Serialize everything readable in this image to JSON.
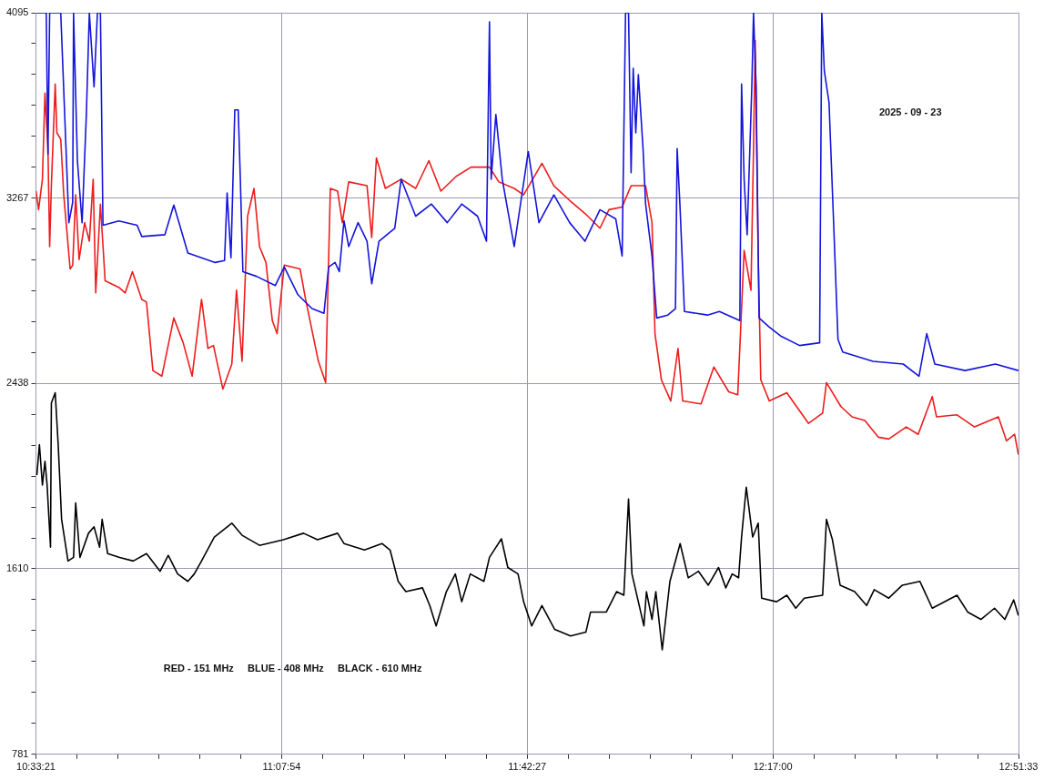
{
  "chart_data": {
    "type": "line",
    "annotations": [
      "2025 - 09 - 23",
      "RED - 151 MHz     BLUE - 408 MHz     BLACK - 610 MHz"
    ],
    "xlim": [
      10.5558,
      12.8592
    ],
    "xticks": [
      {
        "value": 10.5558,
        "label": "10:33:21"
      },
      {
        "value": 10.6518,
        "label": null
      },
      {
        "value": 10.7478,
        "label": null
      },
      {
        "value": 10.8437,
        "label": null
      },
      {
        "value": 10.9397,
        "label": null
      },
      {
        "value": 11.0357,
        "label": null
      },
      {
        "value": 11.1317,
        "label": "11:07:54"
      },
      {
        "value": 11.2276,
        "label": null
      },
      {
        "value": 11.3236,
        "label": null
      },
      {
        "value": 11.4196,
        "label": null
      },
      {
        "value": 11.5156,
        "label": null
      },
      {
        "value": 11.6115,
        "label": null
      },
      {
        "value": 11.7075,
        "label": "11:42:27"
      },
      {
        "value": 11.8035,
        "label": null
      },
      {
        "value": 11.8995,
        "label": null
      },
      {
        "value": 11.9954,
        "label": null
      },
      {
        "value": 12.0914,
        "label": null
      },
      {
        "value": 12.1874,
        "label": null
      },
      {
        "value": 12.2833,
        "label": "12:17:00"
      },
      {
        "value": 12.3793,
        "label": null
      },
      {
        "value": 12.4753,
        "label": null
      },
      {
        "value": 12.5712,
        "label": null
      },
      {
        "value": 12.6672,
        "label": null
      },
      {
        "value": 12.7632,
        "label": null
      },
      {
        "value": 12.8592,
        "label": "12:51:33"
      }
    ],
    "ylim": [
      781,
      4095
    ],
    "yticks": [
      781,
      {
        "value": 919,
        "label": null
      },
      {
        "value": 1057,
        "label": null
      },
      {
        "value": 1196,
        "label": null
      },
      {
        "value": 1334,
        "label": null
      },
      {
        "value": 1472,
        "label": null
      },
      1610,
      {
        "value": 1748,
        "label": null
      },
      {
        "value": 1886,
        "label": null
      },
      {
        "value": 2024,
        "label": null
      },
      {
        "value": 2162,
        "label": null
      },
      {
        "value": 2300,
        "label": null
      },
      2438,
      {
        "value": 2576,
        "label": null
      },
      {
        "value": 2714,
        "label": null
      },
      {
        "value": 2852,
        "label": null
      },
      {
        "value": 2991,
        "label": null
      },
      {
        "value": 3129,
        "label": null
      },
      3267,
      {
        "value": 3405,
        "label": null
      },
      {
        "value": 3543,
        "label": null
      },
      {
        "value": 3681,
        "label": null
      },
      {
        "value": 3819,
        "label": null
      },
      {
        "value": 3957,
        "label": null
      },
      4095
    ],
    "grid": true,
    "marker": "none",
    "line_style": "solid",
    "series": [
      {
        "color": "#ee1c1c",
        "x": [
          10.556,
          10.562,
          10.571,
          10.577,
          10.584,
          10.588,
          10.592,
          10.601,
          10.605,
          10.614,
          10.621,
          10.636,
          10.642,
          10.649,
          10.657,
          10.67,
          10.681,
          10.69,
          10.696,
          10.707,
          10.718,
          10.75,
          10.765,
          10.782,
          10.804,
          10.815,
          10.83,
          10.851,
          10.879,
          10.901,
          10.922,
          10.944,
          10.959,
          10.972,
          10.994,
          11.015,
          11.026,
          11.039,
          11.052,
          11.067,
          11.08,
          11.095,
          11.11,
          11.121,
          11.138,
          11.175,
          11.188,
          11.218,
          11.235,
          11.246,
          11.263,
          11.274,
          11.289,
          11.332,
          11.343,
          11.354,
          11.375,
          11.412,
          11.446,
          11.477,
          11.505,
          11.541,
          11.576,
          11.619,
          11.641,
          11.677,
          11.699,
          11.742,
          11.77,
          11.807,
          11.843,
          11.878,
          11.899,
          11.93,
          11.951,
          11.985,
          12.0,
          12.007,
          12.022,
          12.044,
          12.061,
          12.072,
          12.115,
          12.145,
          12.18,
          12.201,
          12.216,
          12.232,
          12.238,
          12.242,
          12.249,
          12.255,
          12.275,
          12.316,
          12.367,
          12.4,
          12.409,
          12.443,
          12.469,
          12.499,
          12.531,
          12.555,
          12.596,
          12.624,
          12.657,
          12.667,
          12.715,
          12.756,
          12.812,
          12.831,
          12.85,
          12.859
        ],
        "values": [
          3298,
          3215,
          3351,
          3736,
          3488,
          3050,
          3322,
          3777,
          3558,
          3529,
          3281,
          2950,
          2967,
          3281,
          2992,
          3157,
          3074,
          3351,
          2843,
          3240,
          2897,
          2868,
          2843,
          2938,
          2814,
          2802,
          2496,
          2471,
          2731,
          2620,
          2471,
          2814,
          2595,
          2608,
          2413,
          2525,
          2855,
          2537,
          3186,
          3310,
          3050,
          2979,
          2719,
          2661,
          2967,
          2950,
          2814,
          2537,
          2442,
          3310,
          3298,
          3157,
          3339,
          3322,
          3091,
          3446,
          3310,
          3351,
          3310,
          3434,
          3298,
          3364,
          3405,
          3405,
          3339,
          3310,
          3281,
          3422,
          3322,
          3256,
          3198,
          3132,
          3215,
          3227,
          3322,
          3322,
          3157,
          2661,
          2455,
          2360,
          2595,
          2360,
          2347,
          2512,
          2401,
          2388,
          3033,
          2855,
          3488,
          3971,
          3008,
          2455,
          2360,
          2397,
          2260,
          2306,
          2442,
          2335,
          2289,
          2273,
          2198,
          2190,
          2244,
          2211,
          2380,
          2289,
          2298,
          2244,
          2289,
          2182,
          2211,
          2120
        ]
      },
      {
        "color": "#1414dc",
        "x": [
          10.556,
          10.58,
          10.584,
          10.588,
          10.614,
          10.633,
          10.642,
          10.644,
          10.653,
          10.664,
          10.674,
          10.681,
          10.692,
          10.7,
          10.707,
          10.713,
          10.75,
          10.793,
          10.804,
          10.858,
          10.879,
          10.89,
          10.912,
          10.944,
          10.976,
          10.998,
          11.004,
          11.013,
          11.022,
          11.03,
          11.035,
          11.041,
          11.073,
          11.117,
          11.138,
          11.17,
          11.203,
          11.231,
          11.242,
          11.257,
          11.267,
          11.278,
          11.289,
          11.311,
          11.332,
          11.343,
          11.36,
          11.397,
          11.412,
          11.446,
          11.483,
          11.52,
          11.554,
          11.591,
          11.612,
          11.619,
          11.623,
          11.634,
          11.649,
          11.677,
          11.71,
          11.735,
          11.77,
          11.807,
          11.843,
          11.878,
          11.915,
          11.93,
          11.938,
          11.945,
          11.951,
          11.956,
          11.962,
          11.968,
          11.979,
          11.985,
          12.0,
          12.011,
          12.037,
          12.055,
          12.059,
          12.066,
          12.076,
          12.13,
          12.158,
          12.206,
          12.21,
          12.216,
          12.223,
          12.234,
          12.238,
          12.244,
          12.251,
          12.275,
          12.303,
          12.346,
          12.393,
          12.398,
          12.404,
          12.415,
          12.426,
          12.436,
          12.447,
          12.518,
          12.589,
          12.626,
          12.644,
          12.663,
          12.734,
          12.805,
          12.859
        ],
        "values": [
          4095,
          4095,
          3463,
          4095,
          4095,
          3157,
          3248,
          4095,
          3434,
          3157,
          3640,
          4095,
          3764,
          4095,
          4095,
          3145,
          3165,
          3145,
          3095,
          3103,
          3236,
          3165,
          3021,
          3000,
          2979,
          2988,
          3289,
          3000,
          3661,
          3661,
          3351,
          2938,
          2917,
          2876,
          2959,
          2835,
          2773,
          2752,
          2959,
          2979,
          2938,
          3165,
          3050,
          3157,
          3074,
          2884,
          3074,
          3132,
          3351,
          3186,
          3240,
          3157,
          3240,
          3186,
          3074,
          4054,
          3351,
          3640,
          3351,
          3050,
          3475,
          3157,
          3281,
          3157,
          3074,
          3215,
          3174,
          3008,
          4095,
          4095,
          3380,
          3847,
          3558,
          3818,
          3488,
          3240,
          3008,
          2731,
          2744,
          2773,
          3488,
          3215,
          2760,
          2744,
          2760,
          2719,
          3777,
          3351,
          3103,
          3764,
          4095,
          3764,
          2731,
          2690,
          2649,
          2608,
          2620,
          4095,
          3835,
          3694,
          3145,
          2636,
          2579,
          2537,
          2525,
          2471,
          2661,
          2525,
          2496,
          2525,
          2496
        ]
      },
      {
        "color": "#000000",
        "x": [
          10.558,
          10.564,
          10.571,
          10.577,
          10.582,
          10.59,
          10.592,
          10.601,
          10.608,
          10.616,
          10.631,
          10.644,
          10.649,
          10.659,
          10.679,
          10.692,
          10.705,
          10.711,
          10.724,
          10.752,
          10.784,
          10.815,
          10.847,
          10.866,
          10.888,
          10.912,
          10.927,
          10.944,
          10.974,
          11.015,
          11.039,
          11.08,
          11.136,
          11.183,
          11.216,
          11.263,
          11.278,
          11.326,
          11.367,
          11.386,
          11.405,
          11.423,
          11.462,
          11.479,
          11.494,
          11.518,
          11.539,
          11.554,
          11.574,
          11.606,
          11.619,
          11.63,
          11.647,
          11.662,
          11.686,
          11.699,
          11.718,
          11.742,
          11.772,
          11.809,
          11.845,
          11.856,
          11.893,
          11.917,
          11.934,
          11.945,
          11.953,
          11.981,
          11.987,
          12.0,
          12.009,
          12.024,
          12.042,
          12.066,
          12.085,
          12.109,
          12.132,
          12.156,
          12.173,
          12.188,
          12.203,
          12.21,
          12.221,
          12.236,
          12.249,
          12.257,
          12.292,
          12.316,
          12.337,
          12.357,
          12.4,
          12.409,
          12.423,
          12.441,
          12.475,
          12.503,
          12.521,
          12.555,
          12.587,
          12.628,
          12.657,
          12.715,
          12.74,
          12.771,
          12.803,
          12.827,
          12.848,
          12.859
        ],
        "values": [
          2029,
          2165,
          1984,
          2091,
          1984,
          1707,
          2351,
          2397,
          2165,
          1831,
          1645,
          1661,
          1905,
          1661,
          1769,
          1798,
          1707,
          1831,
          1678,
          1661,
          1645,
          1678,
          1599,
          1670,
          1587,
          1554,
          1587,
          1645,
          1752,
          1814,
          1760,
          1715,
          1740,
          1769,
          1740,
          1769,
          1723,
          1694,
          1723,
          1694,
          1554,
          1508,
          1525,
          1446,
          1355,
          1508,
          1587,
          1463,
          1587,
          1554,
          1661,
          1694,
          1744,
          1616,
          1587,
          1463,
          1355,
          1446,
          1339,
          1310,
          1327,
          1417,
          1417,
          1508,
          1492,
          1922,
          1587,
          1355,
          1508,
          1384,
          1508,
          1248,
          1554,
          1723,
          1570,
          1599,
          1537,
          1616,
          1525,
          1587,
          1570,
          1752,
          1975,
          1752,
          1814,
          1479,
          1463,
          1492,
          1434,
          1479,
          1492,
          1831,
          1740,
          1537,
          1508,
          1446,
          1517,
          1479,
          1537,
          1554,
          1434,
          1492,
          1417,
          1384,
          1434,
          1384,
          1471,
          1401
        ]
      }
    ]
  }
}
